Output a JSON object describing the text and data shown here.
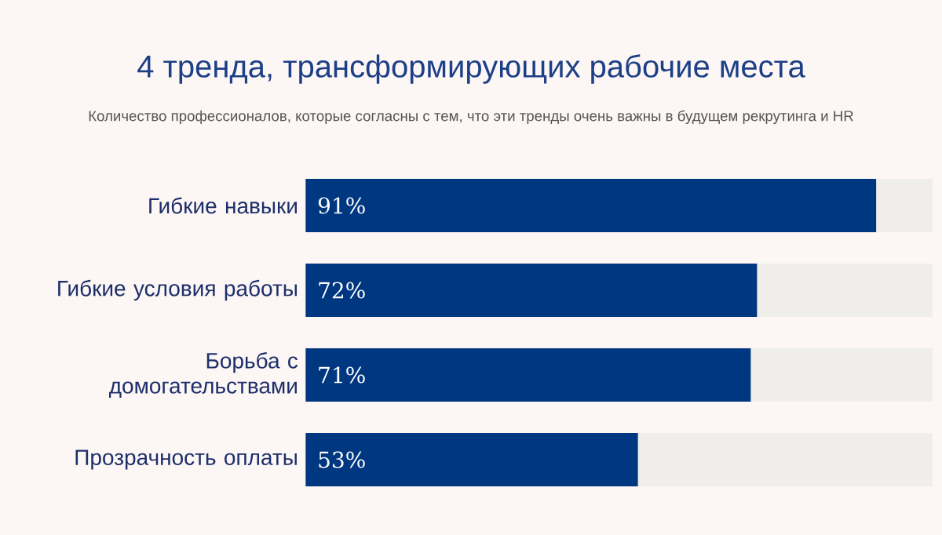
{
  "chart_data": {
    "type": "bar",
    "orientation": "horizontal",
    "stacked": true,
    "title": "4 тренда, трансформирующих рабочие места",
    "subtitle": "Количество профессионалов, которые согласны с тем, что эти тренды очень важны в будущем рекрутинга и HR",
    "categories": [
      "Гибкие навыки",
      "Гибкие условия работы",
      "Борьба с домогательствами",
      "Прозрачность оплаты"
    ],
    "series": [
      {
        "color": "#003781",
        "values": [
          91,
          72,
          71,
          53
        ],
        "value_labels": [
          "91%",
          "72%",
          "71%",
          "53%"
        ]
      },
      {
        "color": "#efeeea",
        "values": [
          9,
          28,
          29,
          47
        ]
      }
    ],
    "xlim": [
      0,
      100
    ],
    "tick_labels": "y"
  }
}
